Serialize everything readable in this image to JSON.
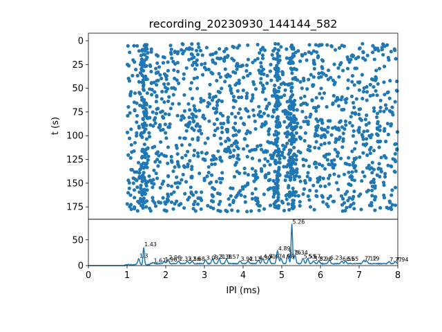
{
  "chart_data": [
    {
      "type": "scatter",
      "title": "recording_20230930_144144_582",
      "xlabel": "",
      "ylabel": "t (s)",
      "xlim": [
        0,
        8
      ],
      "ylim": [
        188,
        -8
      ],
      "y_inverted": true,
      "y_ticks": [
        0,
        25,
        50,
        75,
        100,
        125,
        150,
        175
      ],
      "color": "#1f77b4",
      "note_dense_columns_ms": [
        1.43,
        4.89,
        5.26
      ],
      "point_count_estimate": 1800
    },
    {
      "type": "line",
      "title": "",
      "xlabel": "IPI (ms)",
      "ylabel": "",
      "xlim": [
        0,
        8
      ],
      "ylim": [
        0,
        90
      ],
      "x_ticks": [
        0,
        1,
        2,
        3,
        4,
        5,
        6,
        7,
        8
      ],
      "y_ticks": [
        0,
        50
      ],
      "color": "#1f77b4",
      "peaks": [
        {
          "x": 1.3,
          "y": 14,
          "label": "1.3"
        },
        {
          "x": 1.43,
          "y": 36,
          "label": "1.43"
        },
        {
          "x": 1.67,
          "y": 5,
          "label": "1.67"
        },
        {
          "x": 1.96,
          "y": 7,
          "label": "1.96"
        },
        {
          "x": 2.06,
          "y": 11,
          "label": "2.06"
        },
        {
          "x": 2.33,
          "y": 8,
          "label": "2.33"
        },
        {
          "x": 2.56,
          "y": 8,
          "label": "2.56"
        },
        {
          "x": 2.68,
          "y": 8,
          "label": "2.68"
        },
        {
          "x": 3.03,
          "y": 10,
          "label": "3.03"
        },
        {
          "x": 3.21,
          "y": 12,
          "label": "3.21"
        },
        {
          "x": 3.38,
          "y": 12,
          "label": "3.38"
        },
        {
          "x": 3.57,
          "y": 12,
          "label": "3.57"
        },
        {
          "x": 3.92,
          "y": 8,
          "label": "3.92"
        },
        {
          "x": 4.13,
          "y": 8,
          "label": "4.13"
        },
        {
          "x": 4.39,
          "y": 10,
          "label": "4.39"
        },
        {
          "x": 4.51,
          "y": 13,
          "label": "4.51"
        },
        {
          "x": 4.67,
          "y": 13,
          "label": "4.67"
        },
        {
          "x": 4.89,
          "y": 28,
          "label": "4.89"
        },
        {
          "x": 4.98,
          "y": 13,
          "label": "4.98"
        },
        {
          "x": 5.16,
          "y": 21,
          "label": "5.16"
        },
        {
          "x": 5.26,
          "y": 80,
          "label": "5.26"
        },
        {
          "x": 5.34,
          "y": 20,
          "label": "5.34"
        },
        {
          "x": 5.55,
          "y": 13,
          "label": "5.55"
        },
        {
          "x": 5.67,
          "y": 13,
          "label": "5.67"
        },
        {
          "x": 5.82,
          "y": 8,
          "label": "5.82"
        },
        {
          "x": 5.96,
          "y": 8,
          "label": "5.96"
        },
        {
          "x": 6.23,
          "y": 10,
          "label": "6.23"
        },
        {
          "x": 6.55,
          "y": 8,
          "label": "6.55"
        },
        {
          "x": 6.65,
          "y": 8,
          "label": "6.65"
        },
        {
          "x": 7.12,
          "y": 9,
          "label": "7.12"
        },
        {
          "x": 7.19,
          "y": 9,
          "label": "7.19"
        },
        {
          "x": 7.77,
          "y": 7,
          "label": "7.77"
        },
        {
          "x": 7.94,
          "y": 7,
          "label": "7.94"
        }
      ]
    }
  ]
}
